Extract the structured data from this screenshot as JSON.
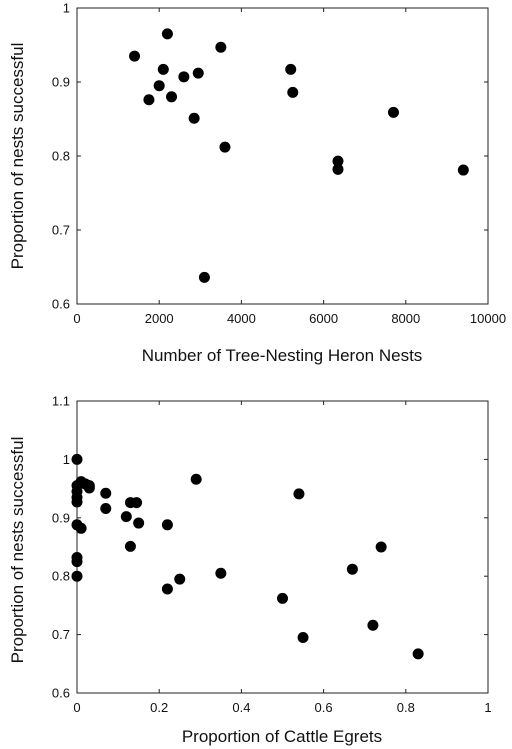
{
  "chart_data": [
    {
      "type": "scatter",
      "xlabel": "Number of Tree-Nesting Heron Nests",
      "ylabel": "Proportion of nests successful",
      "xlim": [
        0,
        10000
      ],
      "ylim": [
        0.6,
        1
      ],
      "xticks": [
        "0",
        "2000",
        "4000",
        "6000",
        "8000",
        "10000"
      ],
      "yticks": [
        "0.6",
        "0.7",
        "0.8",
        "0.9",
        "1"
      ],
      "grid": false,
      "points": [
        {
          "x": 1400,
          "y": 0.935
        },
        {
          "x": 1750,
          "y": 0.876
        },
        {
          "x": 2000,
          "y": 0.895
        },
        {
          "x": 2100,
          "y": 0.917
        },
        {
          "x": 2200,
          "y": 0.965
        },
        {
          "x": 2300,
          "y": 0.88
        },
        {
          "x": 2600,
          "y": 0.907
        },
        {
          "x": 2850,
          "y": 0.851
        },
        {
          "x": 2950,
          "y": 0.912
        },
        {
          "x": 3100,
          "y": 0.636
        },
        {
          "x": 3500,
          "y": 0.947
        },
        {
          "x": 3600,
          "y": 0.812
        },
        {
          "x": 5200,
          "y": 0.917
        },
        {
          "x": 5250,
          "y": 0.886
        },
        {
          "x": 6350,
          "y": 0.793
        },
        {
          "x": 6350,
          "y": 0.782
        },
        {
          "x": 7700,
          "y": 0.859
        },
        {
          "x": 9400,
          "y": 0.781
        }
      ]
    },
    {
      "type": "scatter",
      "xlabel": "Proportion of Cattle Egrets",
      "ylabel": "Proportion of nests successful",
      "xlim": [
        0,
        1
      ],
      "ylim": [
        0.6,
        1.1
      ],
      "xticks": [
        "0",
        "0.2",
        "0.4",
        "0.6",
        "0.8",
        "1"
      ],
      "yticks": [
        "0.6",
        "0.7",
        "0.8",
        "0.9",
        "1",
        "1.1"
      ],
      "grid": false,
      "points": [
        {
          "x": 0.0,
          "y": 1.0
        },
        {
          "x": 0.0,
          "y": 0.955
        },
        {
          "x": 0.0,
          "y": 0.945
        },
        {
          "x": 0.0,
          "y": 0.935
        },
        {
          "x": 0.0,
          "y": 0.927
        },
        {
          "x": 0.0,
          "y": 0.888
        },
        {
          "x": 0.0,
          "y": 0.832
        },
        {
          "x": 0.0,
          "y": 0.825
        },
        {
          "x": 0.0,
          "y": 0.8
        },
        {
          "x": 0.01,
          "y": 0.962
        },
        {
          "x": 0.01,
          "y": 0.882
        },
        {
          "x": 0.02,
          "y": 0.958
        },
        {
          "x": 0.03,
          "y": 0.955
        },
        {
          "x": 0.03,
          "y": 0.951
        },
        {
          "x": 0.07,
          "y": 0.942
        },
        {
          "x": 0.07,
          "y": 0.916
        },
        {
          "x": 0.12,
          "y": 0.902
        },
        {
          "x": 0.13,
          "y": 0.926
        },
        {
          "x": 0.13,
          "y": 0.851
        },
        {
          "x": 0.145,
          "y": 0.926
        },
        {
          "x": 0.15,
          "y": 0.891
        },
        {
          "x": 0.22,
          "y": 0.888
        },
        {
          "x": 0.22,
          "y": 0.778
        },
        {
          "x": 0.25,
          "y": 0.795
        },
        {
          "x": 0.29,
          "y": 0.966
        },
        {
          "x": 0.35,
          "y": 0.805
        },
        {
          "x": 0.5,
          "y": 0.762
        },
        {
          "x": 0.54,
          "y": 0.941
        },
        {
          "x": 0.55,
          "y": 0.695
        },
        {
          "x": 0.67,
          "y": 0.812
        },
        {
          "x": 0.72,
          "y": 0.716
        },
        {
          "x": 0.74,
          "y": 0.85
        },
        {
          "x": 0.83,
          "y": 0.667
        }
      ]
    }
  ]
}
